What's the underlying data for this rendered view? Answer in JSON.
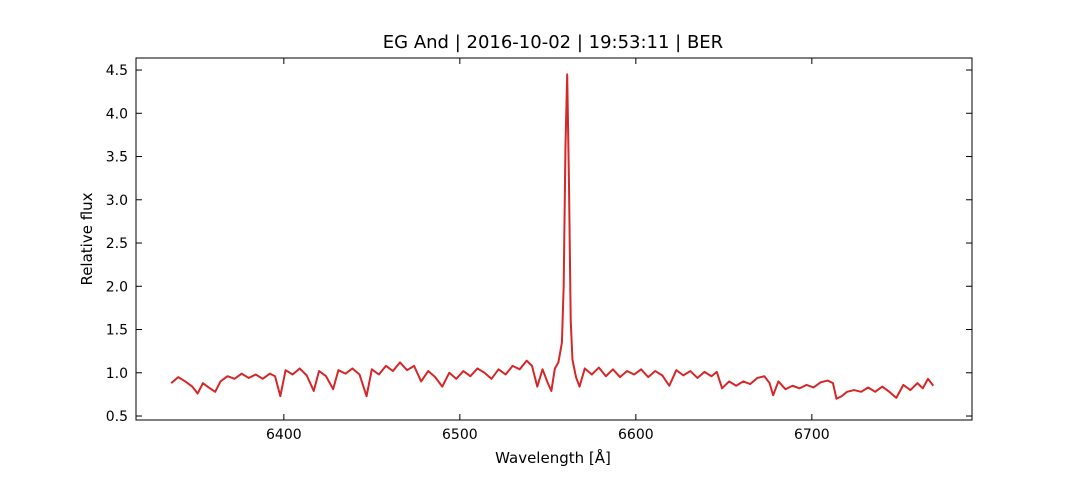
{
  "chart_data": {
    "type": "line",
    "title": "EG And | 2016-10-02 | 19:53:11 | BER",
    "x_label": "Wavelength [Å]",
    "y_label": "Relative flux",
    "xlim": [
      6316,
      6791
    ],
    "ylim": [
      0.454,
      4.639
    ],
    "xticks": [
      6400,
      6500,
      6600,
      6700
    ],
    "yticks": [
      0.5,
      {
        "value": 1,
        "label": "1.0"
      },
      1.5,
      {
        "value": 2,
        "label": "2.0"
      },
      2.5,
      {
        "value": 3,
        "label": "3.0"
      },
      3.5,
      {
        "value": 4,
        "label": "4.0"
      },
      4.5
    ],
    "x": [
      6336,
      6340,
      6344,
      6348,
      6351,
      6354,
      6358,
      6361,
      6364,
      6368,
      6372,
      6376,
      6380,
      6384,
      6388,
      6392,
      6395,
      6398,
      6401,
      6405,
      6409,
      6413,
      6417,
      6420,
      6424,
      6428,
      6431,
      6435,
      6439,
      6443,
      6447,
      6450,
      6454,
      6458,
      6462,
      6466,
      6470,
      6474,
      6478,
      6482,
      6486,
      6490,
      6494,
      6498,
      6502,
      6506,
      6510,
      6514,
      6518,
      6522,
      6526,
      6530,
      6534,
      6538,
      6541,
      6544,
      6547,
      6550,
      6552,
      6554,
      6556,
      6558,
      6559,
      6560,
      6561,
      6562,
      6563,
      6564,
      6566,
      6568,
      6571,
      6575,
      6579,
      6583,
      6587,
      6591,
      6595,
      6599,
      6603,
      6607,
      6611,
      6615,
      6619,
      6623,
      6627,
      6631,
      6635,
      6639,
      6643,
      6646,
      6649,
      6653,
      6657,
      6661,
      6665,
      6669,
      6673,
      6676,
      6678,
      6681,
      6685,
      6689,
      6693,
      6697,
      6701,
      6705,
      6709,
      6712,
      6714,
      6717,
      6720,
      6724,
      6728,
      6732,
      6736,
      6740,
      6744,
      6748,
      6752,
      6756,
      6760,
      6763,
      6766,
      6769
    ],
    "series": [
      {
        "color": "#d62728",
        "values": [
          0.88,
          0.95,
          0.9,
          0.84,
          0.76,
          0.88,
          0.82,
          0.78,
          0.9,
          0.96,
          0.93,
          0.99,
          0.94,
          0.98,
          0.93,
          0.99,
          0.96,
          0.73,
          1.03,
          0.98,
          1.05,
          0.97,
          0.79,
          1.02,
          0.96,
          0.81,
          1.03,
          0.99,
          1.05,
          0.98,
          0.73,
          1.04,
          0.98,
          1.08,
          1.02,
          1.12,
          1.03,
          1.08,
          0.9,
          1.02,
          0.95,
          0.84,
          1.0,
          0.93,
          1.02,
          0.96,
          1.05,
          1.0,
          0.93,
          1.04,
          0.98,
          1.08,
          1.04,
          1.14,
          1.08,
          0.84,
          1.04,
          0.88,
          0.79,
          1.05,
          1.12,
          1.35,
          2.0,
          3.6,
          4.45,
          3.2,
          1.6,
          1.15,
          0.95,
          0.84,
          1.05,
          0.98,
          1.06,
          0.96,
          1.04,
          0.95,
          1.02,
          0.98,
          1.04,
          0.95,
          1.02,
          0.97,
          0.85,
          1.03,
          0.97,
          1.02,
          0.94,
          1.01,
          0.96,
          1.01,
          0.82,
          0.9,
          0.85,
          0.9,
          0.87,
          0.94,
          0.96,
          0.88,
          0.74,
          0.9,
          0.81,
          0.85,
          0.82,
          0.86,
          0.83,
          0.89,
          0.91,
          0.88,
          0.7,
          0.73,
          0.78,
          0.8,
          0.78,
          0.83,
          0.78,
          0.84,
          0.78,
          0.71,
          0.86,
          0.8,
          0.88,
          0.82,
          0.93,
          0.85
        ]
      }
    ]
  }
}
